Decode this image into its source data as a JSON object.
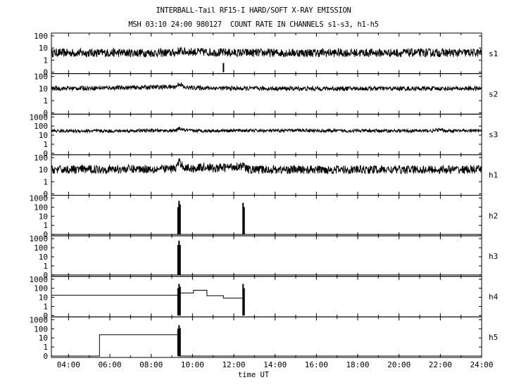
{
  "header": {
    "title_line1": "INTERBALL-Tail RF15-I HARD/SOFT X-RAY EMISSION",
    "title_line2": "MSH 03:10 24:00 980127  COUNT RATE IN CHANNELS s1-s3, h1-h5"
  },
  "chart_data": {
    "type": "line",
    "title": "INTERBALL-Tail RF15-I HARD/SOFT X-RAY EMISSION",
    "subtitle": "MSH 03:10 24:00 980127  COUNT RATE IN CHANNELS s1-s3, h1-h5",
    "xlabel": "time UT",
    "xlim": [
      3.17,
      24.0
    ],
    "x_ticks": [
      "04:00",
      "06:00",
      "08:00",
      "10:00",
      "12:00",
      "14:00",
      "16:00",
      "18:00",
      "20:00",
      "22:00",
      "24:00"
    ],
    "yscale": "log",
    "grid": false,
    "panels": [
      {
        "name": "s1",
        "tick_labels": [
          "100",
          "10",
          "1",
          "0"
        ],
        "baseline": 3,
        "noise": "dense",
        "points": [
          [
            3.17,
            4
          ],
          [
            6,
            4
          ],
          [
            9.2,
            4
          ],
          [
            9.35,
            6
          ],
          [
            9.6,
            5
          ],
          [
            12,
            4
          ],
          [
            24,
            4
          ]
        ],
        "spikes": [
          [
            11.5,
            0.4
          ]
        ]
      },
      {
        "name": "s2",
        "tick_labels": [
          "100",
          "10",
          "1",
          "0"
        ],
        "baseline": 10,
        "noise": "moderate",
        "points": [
          [
            3.17,
            10
          ],
          [
            7,
            12
          ],
          [
            9.2,
            14
          ],
          [
            9.35,
            25
          ],
          [
            9.6,
            12
          ],
          [
            12.4,
            10
          ],
          [
            24,
            10
          ]
        ],
        "spikes": []
      },
      {
        "name": "s3",
        "tick_labels": [
          "1000",
          "100",
          "10",
          "1",
          "0"
        ],
        "baseline": 30,
        "noise": "moderate",
        "points": [
          [
            3.17,
            30
          ],
          [
            6,
            28
          ],
          [
            8,
            32
          ],
          [
            9.2,
            30
          ],
          [
            9.35,
            55
          ],
          [
            9.6,
            35
          ],
          [
            10,
            30
          ],
          [
            12.4,
            32
          ],
          [
            14,
            30
          ],
          [
            15.5,
            35
          ],
          [
            16,
            30
          ],
          [
            21.7,
            30
          ],
          [
            21.9,
            40
          ],
          [
            22.2,
            30
          ],
          [
            24,
            30
          ]
        ],
        "spikes": []
      },
      {
        "name": "h1",
        "tick_labels": [
          "100",
          "10",
          "1",
          "0"
        ],
        "baseline": 10,
        "noise": "dense",
        "points": [
          [
            3.17,
            10
          ],
          [
            9.2,
            12
          ],
          [
            9.35,
            40
          ],
          [
            9.6,
            15
          ],
          [
            10,
            12
          ],
          [
            10.7,
            18
          ],
          [
            11,
            12
          ],
          [
            12.4,
            20
          ],
          [
            12.7,
            10
          ],
          [
            24,
            10
          ]
        ],
        "spikes": []
      },
      {
        "name": "h2",
        "tick_labels": [
          "1000",
          "100",
          "10",
          "1",
          "0"
        ],
        "baseline": 0,
        "noise": "none",
        "points": [
          [
            3.17,
            0
          ],
          [
            24,
            0
          ]
        ],
        "spikes": [
          [
            9.3,
            100
          ],
          [
            9.35,
            500
          ],
          [
            9.4,
            200
          ],
          [
            12.45,
            300
          ],
          [
            12.5,
            100
          ]
        ]
      },
      {
        "name": "h3",
        "tick_labels": [
          "1000",
          "100",
          "10",
          "1",
          "0"
        ],
        "baseline": 0,
        "noise": "none",
        "points": [
          [
            3.17,
            0
          ],
          [
            24,
            0
          ]
        ],
        "spikes": [
          [
            9.3,
            200
          ],
          [
            9.35,
            600
          ],
          [
            9.4,
            200
          ]
        ]
      },
      {
        "name": "h4",
        "tick_labels": [
          "1000",
          "100",
          "10",
          "1",
          "0"
        ],
        "baseline": 0,
        "noise": "none",
        "points": [
          [
            3.17,
            17
          ],
          [
            9.33,
            17
          ],
          [
            9.33,
            30
          ],
          [
            10.05,
            30
          ],
          [
            10.05,
            60
          ],
          [
            10.7,
            60
          ],
          [
            10.7,
            15
          ],
          [
            11.5,
            15
          ],
          [
            11.5,
            8
          ],
          [
            12.45,
            8
          ],
          [
            12.45,
            0
          ]
        ],
        "spikes": [
          [
            9.3,
            100
          ],
          [
            9.35,
            300
          ],
          [
            9.4,
            150
          ],
          [
            12.45,
            300
          ],
          [
            12.5,
            100
          ]
        ]
      },
      {
        "name": "h5",
        "tick_labels": [
          "1000",
          "100",
          "10",
          "1",
          "0"
        ],
        "baseline": 0,
        "noise": "none",
        "points": [
          [
            3.17,
            0
          ],
          [
            5.5,
            0
          ],
          [
            5.5,
            22
          ],
          [
            9.33,
            22
          ],
          [
            9.33,
            0
          ],
          [
            24,
            0
          ]
        ],
        "spikes": [
          [
            9.3,
            100
          ],
          [
            9.35,
            250
          ],
          [
            9.4,
            120
          ]
        ]
      }
    ]
  }
}
